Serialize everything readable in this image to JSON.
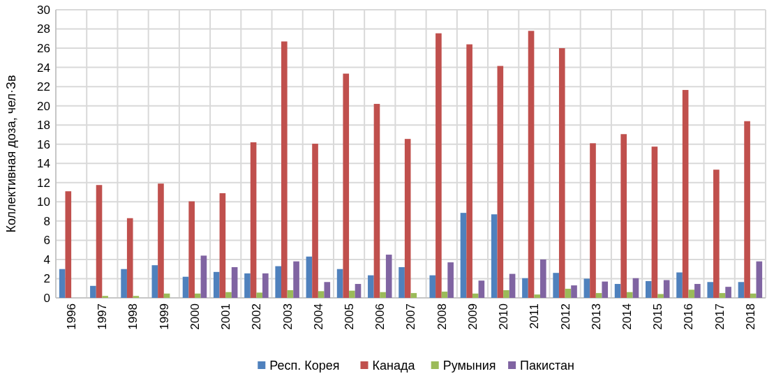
{
  "chart_data": {
    "type": "bar",
    "ylabel": "Коллективная доза, чел·Зв",
    "categories": [
      "1996",
      "1997",
      "1998",
      "1999",
      "2000",
      "2001",
      "2002",
      "2003",
      "2004",
      "2005",
      "2006",
      "2007",
      "2008",
      "2009",
      "2010",
      "2011",
      "2012",
      "2013",
      "2014",
      "2015",
      "2016",
      "2017",
      "2018"
    ],
    "series": [
      {
        "name": "Респ. Корея",
        "color": "#4f81bd",
        "values": [
          3.0,
          1.25,
          3.0,
          3.4,
          2.2,
          2.7,
          2.55,
          3.3,
          4.3,
          3.0,
          2.35,
          3.2,
          2.35,
          8.85,
          8.7,
          2.05,
          2.6,
          2.0,
          1.45,
          1.75,
          2.65,
          1.65,
          1.65
        ]
      },
      {
        "name": "Канада",
        "color": "#c0504d",
        "values": [
          11.1,
          11.75,
          8.3,
          11.9,
          10.05,
          10.9,
          16.2,
          26.7,
          16.05,
          23.35,
          20.2,
          16.55,
          27.55,
          26.4,
          24.15,
          27.8,
          26.0,
          16.1,
          17.05,
          15.75,
          21.65,
          13.35,
          18.4
        ]
      },
      {
        "name": "Румыния",
        "color": "#9bbb59",
        "values": [
          null,
          0.2,
          0.2,
          0.45,
          0.45,
          0.6,
          0.55,
          0.8,
          0.7,
          0.75,
          0.6,
          0.5,
          0.65,
          0.45,
          0.8,
          0.35,
          0.95,
          0.5,
          0.6,
          0.4,
          0.85,
          0.5,
          0.45
        ]
      },
      {
        "name": "Пакистан",
        "color": "#8064a2",
        "values": [
          null,
          null,
          null,
          null,
          4.4,
          3.2,
          2.55,
          3.8,
          1.65,
          1.45,
          4.5,
          null,
          3.7,
          1.8,
          2.5,
          4.0,
          1.3,
          1.7,
          2.05,
          1.85,
          1.45,
          1.15,
          3.8
        ]
      }
    ],
    "ylim": [
      0,
      30
    ],
    "yticks": [
      0,
      2,
      4,
      6,
      8,
      10,
      12,
      14,
      16,
      18,
      20,
      22,
      24,
      26,
      28,
      30
    ],
    "grid": true,
    "legend": "bottom"
  }
}
